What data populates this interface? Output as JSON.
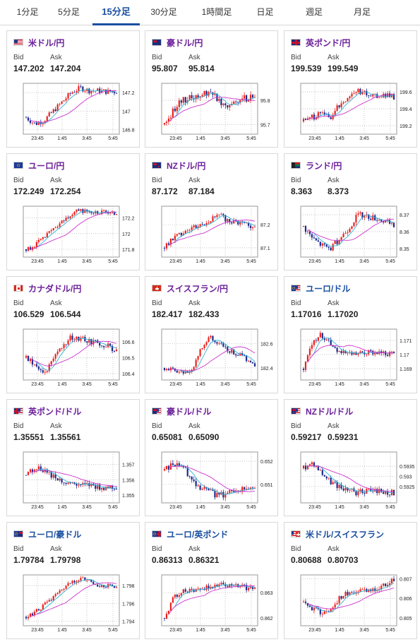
{
  "tabs": [
    {
      "label": "1分足",
      "active": false
    },
    {
      "label": "5分足",
      "active": false
    },
    {
      "label": "15分足",
      "active": true
    },
    {
      "label": "30分足",
      "active": false
    },
    {
      "label": "1時間足",
      "active": false
    },
    {
      "label": "日足",
      "active": false
    },
    {
      "label": "週足",
      "active": false
    },
    {
      "label": "月足",
      "active": false
    }
  ],
  "bid_label": "Bid",
  "ask_label": "Ask",
  "x_ticks": [
    "23:45",
    "1:45",
    "3:45",
    "5:45"
  ],
  "colors": {
    "up": "#e8231f",
    "down": "#1c2a8c",
    "ma_short": "#2fb3d6",
    "ma_long": "#cc33cc",
    "grid": "#b0b0b0"
  },
  "pairs": [
    {
      "name": "米ドル/円",
      "group": "jpy",
      "flag": "us",
      "bid": "147.202",
      "ask": "147.204",
      "y_ticks": [
        "147.2",
        "147",
        "146.8"
      ],
      "ylim": [
        146.75,
        147.3
      ],
      "shape": [
        146.93,
        146.86,
        146.9,
        147.0,
        147.1,
        147.2,
        147.25,
        147.22,
        147.22,
        147.21,
        147.21
      ],
      "noise": 0.06
    },
    {
      "name": "豪ドル/円",
      "group": "jpy",
      "flag": "au",
      "bid": "95.807",
      "ask": "95.814",
      "y_ticks": [
        "95.8",
        "95.7"
      ],
      "ylim": [
        95.66,
        95.87
      ],
      "shape": [
        95.7,
        95.76,
        95.8,
        95.81,
        95.82,
        95.84,
        95.8,
        95.78,
        95.8,
        95.81,
        95.81
      ],
      "noise": 0.03
    },
    {
      "name": "英ポンド/円",
      "group": "jpy",
      "flag": "gb",
      "bid": "199.539",
      "ask": "199.549",
      "y_ticks": [
        "199.6",
        "199.4",
        "199.2"
      ],
      "ylim": [
        199.1,
        199.7
      ],
      "shape": [
        199.25,
        199.3,
        199.35,
        199.3,
        199.45,
        199.55,
        199.62,
        199.57,
        199.55,
        199.56,
        199.54
      ],
      "noise": 0.07
    },
    {
      "name": "ユーロ/円",
      "group": "jpy",
      "flag": "eu",
      "bid": "172.249",
      "ask": "172.254",
      "y_ticks": [
        "172.2",
        "172",
        "171.8"
      ],
      "ylim": [
        171.7,
        172.35
      ],
      "shape": [
        171.8,
        171.85,
        171.95,
        172.05,
        172.15,
        172.25,
        172.3,
        172.28,
        172.27,
        172.27,
        172.25
      ],
      "noise": 0.06
    },
    {
      "name": "NZドル/円",
      "group": "jpy",
      "flag": "nz",
      "bid": "87.172",
      "ask": "87.184",
      "y_ticks": [
        "87.2",
        "87.1"
      ],
      "ylim": [
        87.06,
        87.28
      ],
      "shape": [
        87.1,
        87.14,
        87.17,
        87.19,
        87.2,
        87.22,
        87.24,
        87.22,
        87.21,
        87.21,
        87.18
      ],
      "noise": 0.025
    },
    {
      "name": "ランド/円",
      "group": "jpy",
      "flag": "za",
      "bid": "8.363",
      "ask": "8.373",
      "y_ticks": [
        "8.37",
        "8.36",
        "8.35"
      ],
      "ylim": [
        8.345,
        8.375
      ],
      "shape": [
        8.363,
        8.356,
        8.352,
        8.35,
        8.356,
        8.362,
        8.37,
        8.369,
        8.368,
        8.366,
        8.363
      ],
      "noise": 0.0035
    },
    {
      "name": "カナダドル/円",
      "group": "jpy",
      "flag": "ca",
      "bid": "106.529",
      "ask": "106.544",
      "y_ticks": [
        "106.6",
        "106.5",
        "106.4"
      ],
      "ylim": [
        106.36,
        106.68
      ],
      "shape": [
        106.5,
        106.45,
        106.4,
        106.48,
        106.58,
        106.63,
        106.62,
        106.6,
        106.59,
        106.58,
        106.54
      ],
      "noise": 0.035
    },
    {
      "name": "スイスフラン/円",
      "group": "jpy",
      "flag": "ch",
      "bid": "182.417",
      "ask": "182.433",
      "y_ticks": [
        "182.6",
        "182.4"
      ],
      "ylim": [
        182.3,
        182.72
      ],
      "shape": [
        182.4,
        182.38,
        182.36,
        182.38,
        182.55,
        182.65,
        182.6,
        182.55,
        182.52,
        182.48,
        182.42
      ],
      "noise": 0.04
    },
    {
      "name": "ユーロ/ドル",
      "group": "cross",
      "flag": "eu-us",
      "bid": "1.17016",
      "ask": "1.17020",
      "y_ticks": [
        "1.171",
        "1.17",
        "1.169"
      ],
      "ylim": [
        1.1682,
        1.1718
      ],
      "shape": [
        1.169,
        1.171,
        1.1714,
        1.1708,
        1.1702,
        1.17,
        1.17,
        1.1701,
        1.1702,
        1.1701,
        1.17
      ],
      "noise": 0.0004
    },
    {
      "name": "英ポンド/ドル",
      "group": "jpy",
      "flag": "gb-us",
      "bid": "1.35551",
      "ask": "1.35561",
      "y_ticks": [
        "1.357",
        "1.356",
        "1.355"
      ],
      "ylim": [
        1.3545,
        1.3578
      ],
      "shape": [
        1.3563,
        1.3568,
        1.3566,
        1.3562,
        1.3559,
        1.3557,
        1.3556,
        1.3556,
        1.3555,
        1.3555,
        1.3555
      ],
      "noise": 0.0004
    },
    {
      "name": "豪ドル/ドル",
      "group": "jpy",
      "flag": "au-us",
      "bid": "0.65081",
      "ask": "0.65090",
      "y_ticks": [
        "0.652",
        "0.651"
      ],
      "ylim": [
        0.6502,
        0.6524
      ],
      "shape": [
        0.6516,
        0.6519,
        0.6518,
        0.6512,
        0.6509,
        0.6507,
        0.6505,
        0.6506,
        0.6508,
        0.6508,
        0.6508
      ],
      "noise": 0.0003
    },
    {
      "name": "NZドル/ドル",
      "group": "jpy",
      "flag": "nz-us",
      "bid": "0.59217",
      "ask": "0.59231",
      "y_ticks": [
        "0.5935",
        "0.593",
        "0.5925"
      ],
      "ylim": [
        0.5917,
        0.5942
      ],
      "shape": [
        0.5934,
        0.5937,
        0.5932,
        0.5927,
        0.5925,
        0.5923,
        0.5922,
        0.5923,
        0.5923,
        0.5922,
        0.5922
      ],
      "noise": 0.0003
    },
    {
      "name": "ユーロ/豪ドル",
      "group": "cross",
      "flag": "eu-au",
      "bid": "1.79784",
      "ask": "1.79798",
      "y_ticks": [
        "1.798",
        "1.796",
        "1.794"
      ],
      "ylim": [
        1.7935,
        1.7992
      ],
      "shape": [
        1.7945,
        1.795,
        1.7958,
        1.7966,
        1.7976,
        1.7984,
        1.7988,
        1.7984,
        1.798,
        1.798,
        1.7978
      ],
      "noise": 0.0005
    },
    {
      "name": "ユーロ/英ポンド",
      "group": "cross",
      "flag": "eu-gb",
      "bid": "0.86313",
      "ask": "0.86321",
      "y_ticks": [
        "0.863",
        "0.862"
      ],
      "ylim": [
        0.8617,
        0.8637
      ],
      "shape": [
        0.862,
        0.8628,
        0.8631,
        0.8631,
        0.8632,
        0.8632,
        0.8633,
        0.8633,
        0.8633,
        0.8632,
        0.8631
      ],
      "noise": 0.0002
    },
    {
      "name": "米ドル/スイスフラン",
      "group": "cross",
      "flag": "us-ch",
      "bid": "0.80688",
      "ask": "0.80703",
      "y_ticks": [
        "0.807",
        "0.806",
        "0.805"
      ],
      "ylim": [
        0.8046,
        0.8072
      ],
      "shape": [
        0.8058,
        0.8055,
        0.8052,
        0.8055,
        0.806,
        0.8063,
        0.8063,
        0.8064,
        0.8065,
        0.8067,
        0.8069
      ],
      "noise": 0.0003
    }
  ]
}
